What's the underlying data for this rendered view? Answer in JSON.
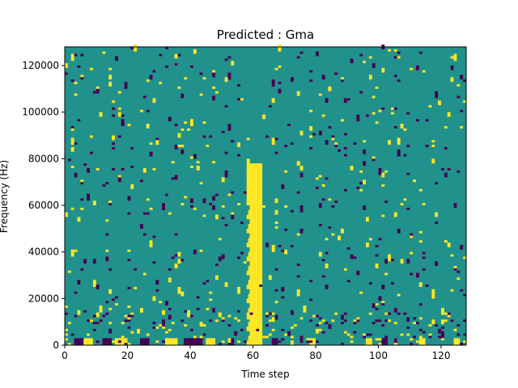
{
  "chart_data": {
    "type": "heatmap",
    "title": "Predicted : Gma",
    "xlabel": "Time step",
    "ylabel": "Frequency (Hz)",
    "xlim": [
      0,
      128
    ],
    "ylim": [
      0,
      128000
    ],
    "x_ticks": [
      0,
      20,
      40,
      60,
      80,
      100,
      120
    ],
    "y_ticks": [
      0,
      20000,
      40000,
      60000,
      80000,
      100000,
      120000
    ],
    "x_tick_labels": [
      "0",
      "20",
      "40",
      "60",
      "80",
      "100",
      "120"
    ],
    "y_tick_labels": [
      "0",
      "20000",
      "40000",
      "60000",
      "80000",
      "100000",
      "120000"
    ],
    "grid": false,
    "legend": false,
    "colors": {
      "background": "#21918c",
      "low": "#440154",
      "high": "#fde725"
    },
    "description": "128x128 grid of mostly mid-value cells with sparse high (yellow) and low (purple) cells; a dense high-value vertical band near time steps 59-63 from 0 to ~78000 Hz; dense activity in the lowest frequency rows.",
    "vertical_bands": [
      {
        "x_start": 59,
        "x_end": 63,
        "y_start": 0,
        "y_end": 78000,
        "value": "high"
      },
      {
        "x_start": 58,
        "x_end": 60,
        "y_start": 60000,
        "y_end": 78000,
        "value": "high"
      }
    ],
    "bottom_row_cells": [
      {
        "x": 3,
        "w": 3,
        "value": "low"
      },
      {
        "x": 6,
        "w": 3,
        "value": "high"
      },
      {
        "x": 12,
        "w": 3,
        "value": "low"
      },
      {
        "x": 16,
        "w": 4,
        "value": "high"
      },
      {
        "x": 24,
        "w": 3,
        "value": "low"
      },
      {
        "x": 32,
        "w": 4,
        "value": "high"
      },
      {
        "x": 38,
        "w": 6,
        "value": "low"
      },
      {
        "x": 45,
        "w": 3,
        "value": "high"
      },
      {
        "x": 52,
        "w": 2,
        "value": "low"
      },
      {
        "x": 66,
        "w": 2,
        "value": "low"
      },
      {
        "x": 78,
        "w": 2,
        "value": "high"
      },
      {
        "x": 96,
        "w": 2,
        "value": "high"
      },
      {
        "x": 101,
        "w": 2,
        "value": "low"
      },
      {
        "x": 113,
        "w": 2,
        "value": "high"
      },
      {
        "x": 124,
        "w": 2,
        "value": "high"
      }
    ],
    "scatter_cells": [
      [
        2,
        122000,
        "high"
      ],
      [
        5,
        124000,
        "low"
      ],
      [
        12,
        125000,
        "high"
      ],
      [
        16,
        122000,
        "low"
      ],
      [
        22,
        126000,
        "high"
      ],
      [
        30,
        124000,
        "low"
      ],
      [
        41,
        125000,
        "high"
      ],
      [
        52,
        123000,
        "low"
      ],
      [
        68,
        126000,
        "high"
      ],
      [
        80,
        124000,
        "low"
      ],
      [
        97,
        123000,
        "high"
      ],
      [
        113,
        125000,
        "low"
      ],
      [
        124,
        122000,
        "high"
      ],
      [
        3,
        112000,
        "high"
      ],
      [
        9,
        108000,
        "low"
      ],
      [
        14,
        114000,
        "high"
      ],
      [
        19,
        110000,
        "low"
      ],
      [
        26,
        113000,
        "high"
      ],
      [
        37,
        106000,
        "low"
      ],
      [
        48,
        108000,
        "high"
      ],
      [
        66,
        111000,
        "low"
      ],
      [
        74,
        107000,
        "high"
      ],
      [
        88,
        113000,
        "low"
      ],
      [
        99,
        110000,
        "high"
      ],
      [
        118,
        106000,
        "low"
      ],
      [
        127,
        104000,
        "high"
      ],
      [
        4,
        96000,
        "low"
      ],
      [
        11,
        98000,
        "high"
      ],
      [
        18,
        94000,
        "low"
      ],
      [
        24,
        100000,
        "high"
      ],
      [
        33,
        96000,
        "low"
      ],
      [
        44,
        95000,
        "high"
      ],
      [
        52,
        92000,
        "low"
      ],
      [
        63,
        97000,
        "high"
      ],
      [
        71,
        94000,
        "low"
      ],
      [
        82,
        98000,
        "high"
      ],
      [
        93,
        96000,
        "low"
      ],
      [
        104,
        101000,
        "high"
      ],
      [
        115,
        96000,
        "low"
      ],
      [
        122,
        98000,
        "high"
      ],
      [
        2,
        86000,
        "high"
      ],
      [
        8,
        82000,
        "low"
      ],
      [
        15,
        88000,
        "high"
      ],
      [
        21,
        84000,
        "low"
      ],
      [
        29,
        86000,
        "high"
      ],
      [
        37,
        82000,
        "low"
      ],
      [
        45,
        85000,
        "high"
      ],
      [
        53,
        87000,
        "low"
      ],
      [
        66,
        86000,
        "high"
      ],
      [
        78,
        84000,
        "low"
      ],
      [
        85,
        88000,
        "high"
      ],
      [
        95,
        82000,
        "low"
      ],
      [
        106,
        86000,
        "high"
      ],
      [
        121,
        84000,
        "low"
      ],
      [
        3,
        72000,
        "low"
      ],
      [
        10,
        75000,
        "high"
      ],
      [
        17,
        70000,
        "low"
      ],
      [
        25,
        74000,
        "high"
      ],
      [
        34,
        71000,
        "low"
      ],
      [
        42,
        76000,
        "high"
      ],
      [
        51,
        72000,
        "low"
      ],
      [
        70,
        74000,
        "high"
      ],
      [
        83,
        71000,
        "low"
      ],
      [
        91,
        75000,
        "high"
      ],
      [
        100,
        73000,
        "low"
      ],
      [
        111,
        70000,
        "high"
      ],
      [
        121,
        72000,
        "low"
      ],
      [
        2,
        58000,
        "high"
      ],
      [
        7,
        62000,
        "low"
      ],
      [
        14,
        60000,
        "high"
      ],
      [
        20,
        56000,
        "low"
      ],
      [
        26,
        62000,
        "high"
      ],
      [
        31,
        58000,
        "low"
      ],
      [
        38,
        63000,
        "high"
      ],
      [
        46,
        60000,
        "low"
      ],
      [
        67,
        61000,
        "high"
      ],
      [
        75,
        57000,
        "low"
      ],
      [
        84,
        62000,
        "high"
      ],
      [
        95,
        58000,
        "low"
      ],
      [
        107,
        60000,
        "high"
      ],
      [
        2,
        38000,
        "high"
      ],
      [
        6,
        35000,
        "low"
      ],
      [
        13,
        40000,
        "high"
      ],
      [
        20,
        36000,
        "low"
      ],
      [
        27,
        42000,
        "high"
      ],
      [
        35,
        38000,
        "low"
      ],
      [
        43,
        40000,
        "high"
      ],
      [
        49,
        36000,
        "low"
      ],
      [
        66,
        40000,
        "high"
      ],
      [
        74,
        34000,
        "low"
      ],
      [
        81,
        38000,
        "high"
      ],
      [
        90,
        41000,
        "low"
      ],
      [
        103,
        36000,
        "high"
      ],
      [
        118,
        34000,
        "low"
      ],
      [
        127,
        37000,
        "high"
      ],
      [
        3,
        22000,
        "low"
      ],
      [
        9,
        25000,
        "high"
      ],
      [
        16,
        20000,
        "low"
      ],
      [
        22,
        24000,
        "high"
      ],
      [
        29,
        26000,
        "low"
      ],
      [
        36,
        22000,
        "high"
      ],
      [
        42,
        20000,
        "low"
      ],
      [
        51,
        25000,
        "high"
      ],
      [
        67,
        23000,
        "low"
      ],
      [
        74,
        21000,
        "high"
      ],
      [
        83,
        24000,
        "low"
      ],
      [
        94,
        22000,
        "high"
      ],
      [
        104,
        26000,
        "low"
      ],
      [
        117,
        20000,
        "high"
      ],
      [
        126,
        23000,
        "low"
      ],
      [
        4,
        14000,
        "high"
      ],
      [
        10,
        12000,
        "high"
      ],
      [
        11,
        14000,
        "high"
      ],
      [
        19,
        10000,
        "low"
      ],
      [
        24,
        14000,
        "high"
      ],
      [
        31,
        10000,
        "low"
      ],
      [
        39,
        12000,
        "high"
      ],
      [
        47,
        14000,
        "low"
      ],
      [
        55,
        10000,
        "high"
      ],
      [
        67,
        12000,
        "low"
      ],
      [
        76,
        14000,
        "high"
      ],
      [
        88,
        11000,
        "low"
      ],
      [
        97,
        13000,
        "high"
      ],
      [
        109,
        10000,
        "low"
      ],
      [
        120,
        13000,
        "high"
      ]
    ]
  }
}
